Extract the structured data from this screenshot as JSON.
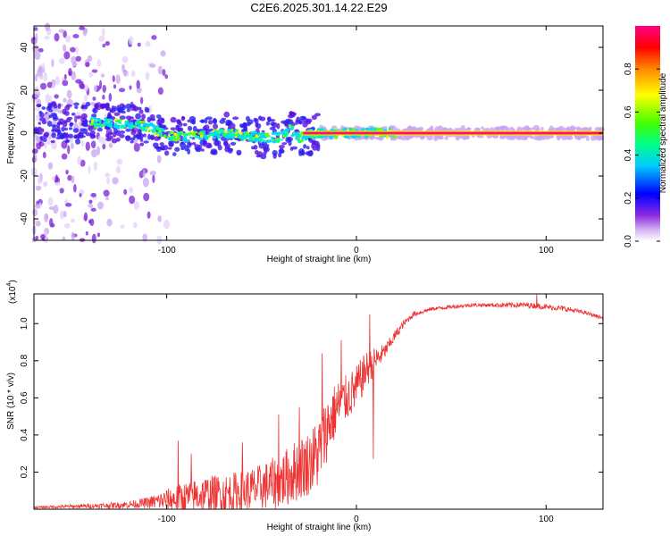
{
  "title": "C2E6.2025.301.14.22.E29",
  "chart_data": [
    {
      "type": "heatmap",
      "title": "C2E6.2025.301.14.22.E29",
      "xlabel": "Height of straight line (km)",
      "ylabel": "Frequency (Hz)",
      "xlim": [
        -170,
        130
      ],
      "ylim": [
        -50,
        50
      ],
      "xticks": [
        -100,
        0,
        100
      ],
      "yticks": [
        -40,
        -20,
        0,
        20,
        40
      ],
      "ridge": [
        {
          "x": -135,
          "y": 5
        },
        {
          "x": -120,
          "y": 4
        },
        {
          "x": -110,
          "y": 3
        },
        {
          "x": -100,
          "y": -1
        },
        {
          "x": -90,
          "y": -2
        },
        {
          "x": -80,
          "y": -1
        },
        {
          "x": -70,
          "y": 0
        },
        {
          "x": -60,
          "y": -1
        },
        {
          "x": -50,
          "y": -2
        },
        {
          "x": -40,
          "y": -2
        },
        {
          "x": -35,
          "y": 2
        },
        {
          "x": -30,
          "y": -2
        },
        {
          "x": -25,
          "y": -1
        },
        {
          "x": -20,
          "y": 0
        },
        {
          "x": 0,
          "y": 0
        },
        {
          "x": 15,
          "y": 0
        },
        {
          "x": 130,
          "y": 0
        }
      ],
      "colorbar": {
        "label": "Normalized spectral amplitude",
        "range": [
          0,
          1
        ],
        "ticks": [
          0.0,
          0.2,
          0.4,
          0.6,
          0.8
        ]
      }
    },
    {
      "type": "line",
      "xlabel": "Height of straight line (km)",
      "ylabel": "SNR (10 * v/v)",
      "scale_note": "(x10",
      "scale_exp": "4",
      "scale_close": ")",
      "xlim": [
        -170,
        130
      ],
      "ylim": [
        0,
        1.16
      ],
      "xticks": [
        -100,
        0,
        100
      ],
      "yticks": [
        0.2,
        0.4,
        0.6,
        0.8,
        1.0
      ],
      "color": "#ee3333",
      "envelope": {
        "x": [
          -170,
          -150,
          -130,
          -120,
          -110,
          -100,
          -90,
          -80,
          -70,
          -60,
          -50,
          -40,
          -30,
          -25,
          -20,
          -15,
          -10,
          -5,
          0,
          5,
          10,
          15,
          20,
          25,
          30,
          40,
          50,
          60,
          70,
          80,
          90,
          100,
          110,
          120,
          130
        ],
        "base": [
          0.01,
          0.015,
          0.02,
          0.025,
          0.035,
          0.05,
          0.06,
          0.08,
          0.08,
          0.09,
          0.12,
          0.15,
          0.22,
          0.25,
          0.3,
          0.45,
          0.55,
          0.6,
          0.65,
          0.75,
          0.8,
          0.85,
          0.93,
          1.0,
          1.05,
          1.08,
          1.09,
          1.1,
          1.1,
          1.1,
          1.1,
          1.09,
          1.08,
          1.06,
          1.03
        ],
        "amp": [
          0.01,
          0.02,
          0.03,
          0.04,
          0.06,
          0.12,
          0.18,
          0.2,
          0.22,
          0.24,
          0.25,
          0.3,
          0.35,
          0.35,
          0.4,
          0.35,
          0.3,
          0.25,
          0.25,
          0.2,
          0.15,
          0.08,
          0.06,
          0.04,
          0.03,
          0.02,
          0.02,
          0.02,
          0.02,
          0.03,
          0.03,
          0.03,
          0.03,
          0.02,
          0.02
        ]
      },
      "spikes": [
        {
          "x": -94,
          "y": 0.37
        },
        {
          "x": -87,
          "y": 0.3
        },
        {
          "x": -60,
          "y": 0.36
        },
        {
          "x": -41,
          "y": 0.51
        },
        {
          "x": -30,
          "y": 0.55
        },
        {
          "x": -18,
          "y": 0.84
        },
        {
          "x": -8,
          "y": 0.91
        },
        {
          "x": 7,
          "y": 1.05
        },
        {
          "x": 9,
          "y": 0.27
        },
        {
          "x": 95,
          "y": 1.16
        }
      ]
    }
  ]
}
